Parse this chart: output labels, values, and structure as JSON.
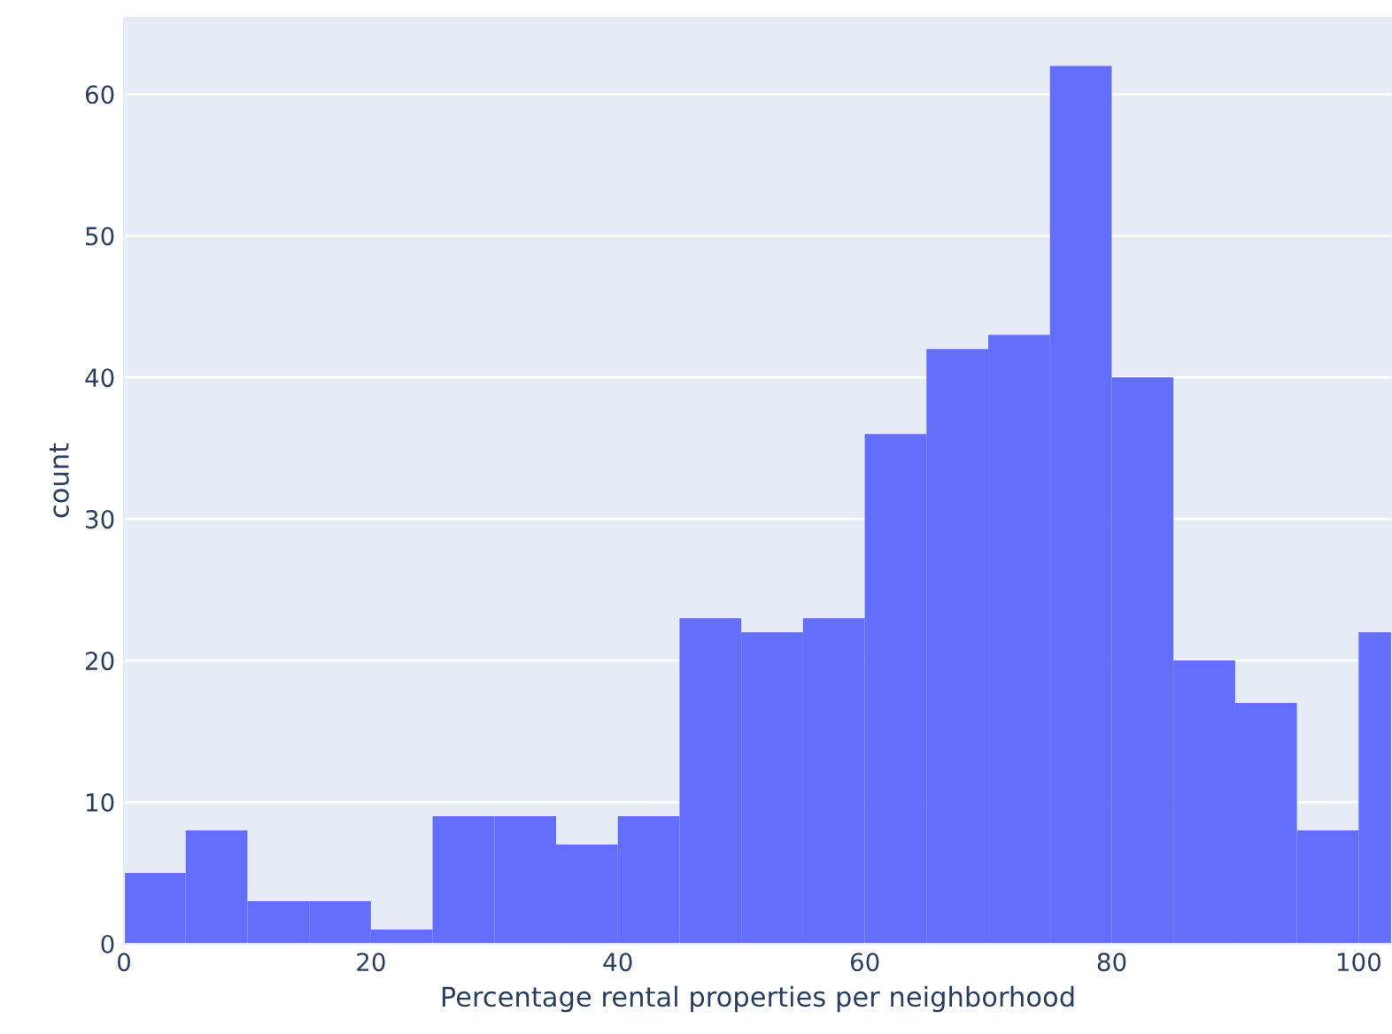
{
  "chart_data": {
    "type": "histogram",
    "xlabel": "Percentage rental properties per neighborhood",
    "ylabel": "count",
    "bins": [
      0,
      5,
      10,
      15,
      20,
      25,
      30,
      35,
      40,
      45,
      50,
      55,
      60,
      65,
      70,
      75,
      80,
      85,
      90,
      95,
      100,
      105
    ],
    "values": [
      5,
      8,
      3,
      3,
      1,
      9,
      9,
      7,
      9,
      23,
      22,
      23,
      36,
      42,
      43,
      62,
      40,
      20,
      17,
      8,
      22
    ],
    "color": "#636efa",
    "xlim": [
      0,
      102.7
    ],
    "ylim": [
      0,
      65.4
    ],
    "xticks": [
      0,
      20,
      40,
      60,
      80,
      100
    ],
    "yticks": [
      0,
      10,
      20,
      30,
      40,
      50,
      60
    ],
    "grid": "y"
  }
}
